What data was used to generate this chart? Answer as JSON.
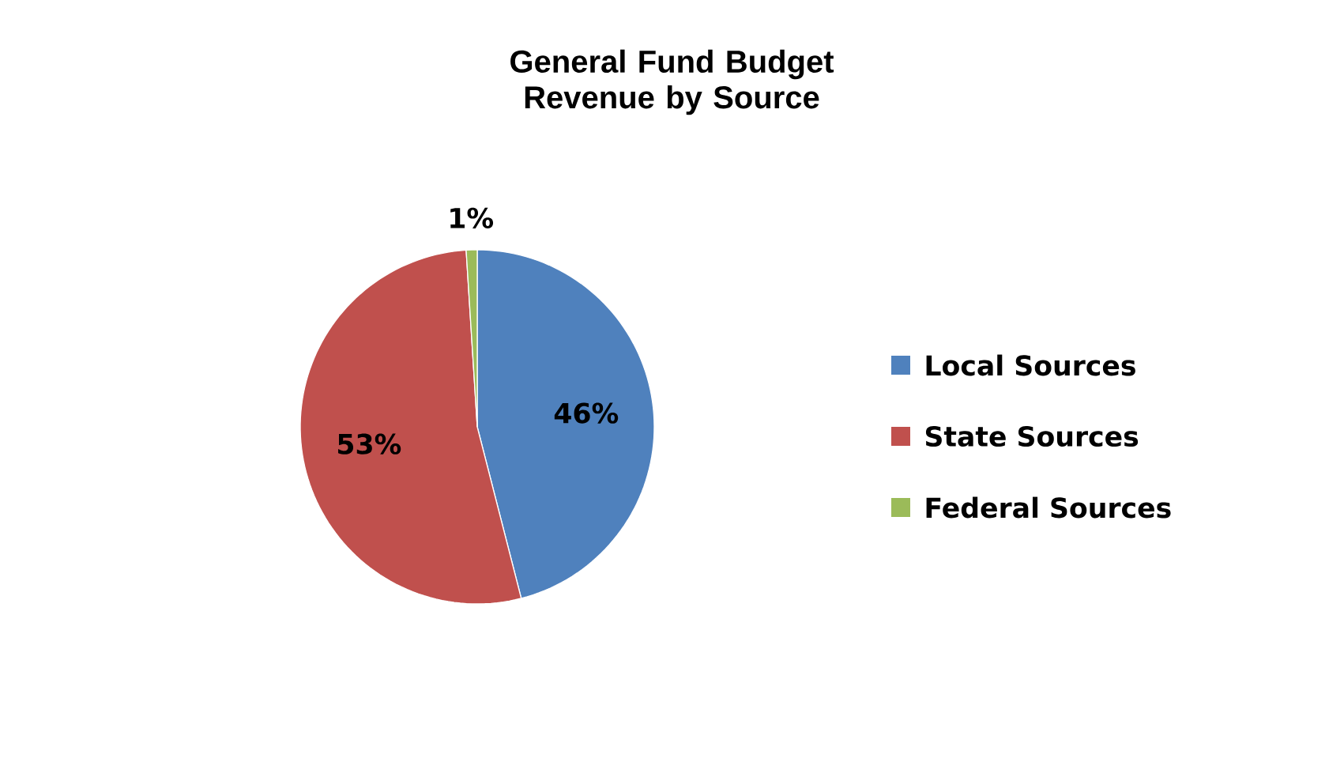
{
  "chart_data": {
    "type": "pie",
    "title": "General Fund Budget Revenue by Source",
    "categories": [
      "Local Sources",
      "State Sources",
      "Federal Sources"
    ],
    "values": [
      46,
      53,
      1
    ],
    "colors": [
      "#4f81bd",
      "#c0504d",
      "#9bbb59"
    ],
    "value_labels": [
      "46%",
      "53%",
      "1%"
    ],
    "legend": "right"
  }
}
